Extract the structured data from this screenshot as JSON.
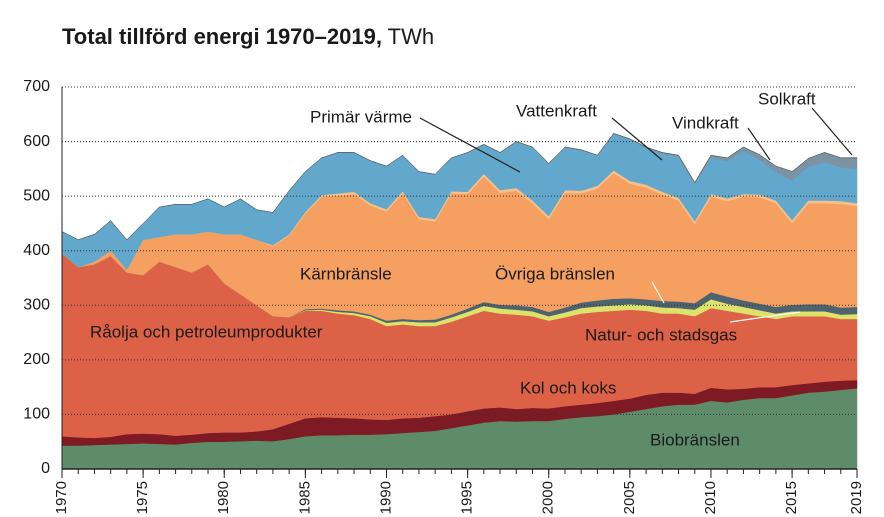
{
  "chart_data": {
    "type": "stacked-area",
    "title": "Total tillförd energi 1970–2019,",
    "unit": "TWh",
    "x": [
      1970,
      1971,
      1972,
      1973,
      1974,
      1975,
      1976,
      1977,
      1978,
      1979,
      1980,
      1981,
      1982,
      1983,
      1984,
      1985,
      1986,
      1987,
      1988,
      1989,
      1990,
      1991,
      1992,
      1993,
      1994,
      1995,
      1996,
      1997,
      1998,
      1999,
      2000,
      2001,
      2002,
      2003,
      2004,
      2005,
      2006,
      2007,
      2008,
      2009,
      2010,
      2011,
      2012,
      2013,
      2014,
      2015,
      2016,
      2017,
      2018,
      2019
    ],
    "xlim": [
      1970,
      2019
    ],
    "xticks": [
      1970,
      1975,
      1980,
      1985,
      1990,
      1995,
      2000,
      2005,
      2010,
      2015,
      2019
    ],
    "ylim": [
      0,
      700
    ],
    "yticks": [
      0,
      100,
      200,
      300,
      400,
      500,
      600,
      700
    ],
    "grid": true,
    "series": [
      {
        "name": "Biobränslen",
        "color": "#5e8c6a",
        "values": [
          43,
          43,
          44,
          45,
          46,
          47,
          46,
          45,
          48,
          50,
          50,
          51,
          52,
          51,
          55,
          60,
          62,
          62,
          63,
          63,
          64,
          66,
          68,
          70,
          75,
          80,
          85,
          88,
          87,
          88,
          88,
          92,
          95,
          97,
          100,
          105,
          110,
          115,
          118,
          118,
          125,
          122,
          127,
          130,
          130,
          135,
          140,
          142,
          145,
          148
        ]
      },
      {
        "name": "Kol och koks",
        "color": "#7d1a24",
        "values": [
          17,
          15,
          13,
          14,
          18,
          18,
          18,
          16,
          15,
          16,
          17,
          16,
          17,
          22,
          28,
          33,
          33,
          32,
          30,
          28,
          26,
          27,
          26,
          27,
          25,
          26,
          26,
          25,
          23,
          24,
          23,
          23,
          23,
          24,
          25,
          24,
          26,
          25,
          22,
          20,
          24,
          24,
          20,
          20,
          20,
          19,
          17,
          18,
          17,
          15
        ]
      },
      {
        "name": "Råolja och petroleumprodukter",
        "color": "#dd6147",
        "values": [
          335,
          312,
          318,
          331,
          296,
          290,
          316,
          309,
          297,
          309,
          273,
          253,
          231,
          207,
          195,
          197,
          195,
          191,
          189,
          184,
          172,
          172,
          168,
          165,
          170,
          174,
          179,
          172,
          173,
          168,
          161,
          163,
          167,
          167,
          165,
          163,
          154,
          145,
          145,
          142,
          146,
          144,
          138,
          130,
          125,
          126,
          123,
          120,
          113,
          112
        ]
      },
      {
        "name": "Natur- och stadsgas",
        "color": "#dde36a",
        "values": [
          0,
          0,
          0,
          0,
          0,
          0,
          0,
          0,
          0,
          0,
          0,
          0,
          0,
          0,
          0,
          1,
          2,
          3,
          4,
          5,
          6,
          6,
          7,
          7,
          8,
          8,
          9,
          9,
          9,
          9,
          8,
          9,
          10,
          10,
          10,
          10,
          10,
          11,
          10,
          12,
          16,
          13,
          12,
          11,
          10,
          9,
          9,
          9,
          8,
          9
        ]
      },
      {
        "name": "Övriga bränslen",
        "color": "#4d6470",
        "values": [
          0,
          0,
          0,
          0,
          0,
          0,
          0,
          0,
          0,
          0,
          0,
          0,
          0,
          0,
          0,
          2,
          2,
          3,
          3,
          3,
          4,
          4,
          4,
          5,
          5,
          6,
          7,
          7,
          8,
          8,
          8,
          9,
          10,
          11,
          12,
          11,
          11,
          12,
          12,
          12,
          13,
          13,
          12,
          12,
          12,
          12,
          13,
          13,
          13,
          13
        ]
      },
      {
        "name": "Kärnbränsle",
        "color": "#f5a060",
        "values": [
          0,
          0,
          5,
          10,
          5,
          65,
          45,
          60,
          70,
          60,
          90,
          110,
          120,
          128,
          150,
          175,
          205,
          210,
          215,
          200,
          200,
          230,
          185,
          180,
          222,
          210,
          230,
          205,
          210,
          190,
          170,
          210,
          200,
          205,
          230,
          210,
          205,
          195,
          185,
          145,
          175,
          175,
          190,
          195,
          190,
          150,
          185,
          185,
          190,
          185
        ]
      },
      {
        "name": "Primär värme",
        "color": "#f8c089",
        "values": [
          0,
          0,
          0,
          0,
          0,
          0,
          0,
          0,
          0,
          0,
          0,
          0,
          0,
          2,
          2,
          3,
          3,
          4,
          4,
          4,
          4,
          4,
          4,
          4,
          4,
          4,
          5,
          5,
          5,
          5,
          5,
          5,
          5,
          5,
          5,
          5,
          5,
          5,
          5,
          5,
          5,
          5,
          5,
          5,
          5,
          5,
          5,
          5,
          5,
          5
        ]
      },
      {
        "name": "Vattenkraft",
        "color": "#62a8cd",
        "values": [
          40,
          50,
          50,
          55,
          55,
          30,
          55,
          55,
          55,
          60,
          50,
          65,
          55,
          60,
          80,
          74,
          68,
          75,
          72,
          78,
          79,
          66,
          83,
          82,
          61,
          71,
          53,
          68,
          84,
          97,
          96,
          78,
          74,
          55,
          67,
          76,
          67,
          69,
          75,
          68,
          67,
          68,
          79,
          63,
          52,
          73,
          62,
          70,
          62,
          63
        ]
      },
      {
        "name": "Vindkraft",
        "color": "#7c93a3",
        "values": [
          0,
          0,
          0,
          0,
          0,
          0,
          0,
          0,
          0,
          0,
          0,
          0,
          0,
          0,
          0,
          0,
          0,
          0,
          0,
          0,
          0,
          0,
          0,
          0,
          0,
          1,
          1,
          1,
          1,
          1,
          1,
          1,
          1,
          1,
          1,
          1,
          2,
          3,
          3,
          3,
          4,
          6,
          7,
          10,
          11,
          16,
          15,
          18,
          17,
          20
        ]
      },
      {
        "name": "Solkraft",
        "color": "#4e5a63",
        "values": [
          0,
          0,
          0,
          0,
          0,
          0,
          0,
          0,
          0,
          0,
          0,
          0,
          0,
          0,
          0,
          0,
          0,
          0,
          0,
          0,
          0,
          0,
          0,
          0,
          0,
          0,
          0,
          0,
          0,
          0,
          0,
          0,
          0,
          0,
          0,
          0,
          0,
          0,
          0,
          0,
          0,
          0,
          0,
          0,
          0.1,
          0.1,
          0.1,
          0.2,
          0.4,
          0.7
        ]
      }
    ]
  }
}
